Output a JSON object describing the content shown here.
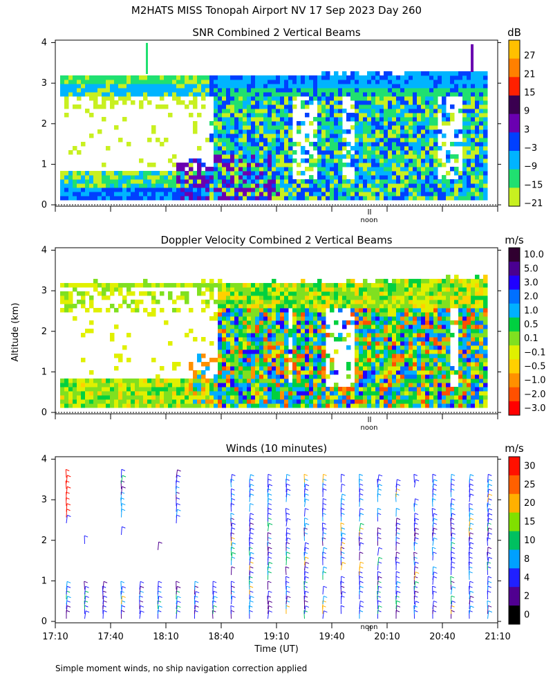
{
  "title": "M2HATS MISS Tonopah Airport NV  17 Sep 2023 Day 260",
  "ylabel": "Altitude (km)",
  "xlabel": "Time (UT)",
  "footnote": "Simple moment winds, no ship navigation correction applied",
  "noon_label": "noon",
  "chart_data": [
    {
      "type": "heatmap",
      "title": "SNR Combined 2 Vertical Beams",
      "unit": "dB",
      "ylim": [
        0,
        4
      ],
      "yticks": [
        "0",
        "1",
        "2",
        "3",
        "4"
      ],
      "colorbar": {
        "labels": [
          "27",
          "21",
          "15",
          "9",
          "3",
          "−3",
          "−9",
          "−15",
          "−21"
        ],
        "colors": [
          "#ffc000",
          "#ff8000",
          "#ff2000",
          "#3a0050",
          "#6a00b0",
          "#0040ff",
          "#00b4ff",
          "#20e070",
          "#c8f020"
        ]
      }
    },
    {
      "type": "heatmap",
      "title": "Doppler Velocity Combined 2 Vertical Beams",
      "unit": "m/s",
      "ylim": [
        0,
        4
      ],
      "yticks": [
        "0",
        "1",
        "2",
        "3",
        "4"
      ],
      "colorbar": {
        "labels": [
          "10.0",
          "5.0",
          "3.0",
          "2.0",
          "1.0",
          "0.5",
          "0.1",
          "−0.1",
          "−0.5",
          "−1.0",
          "−2.0",
          "−3.0"
        ],
        "colors": [
          "#300030",
          "#4a0090",
          "#2000ff",
          "#0070ff",
          "#00b0ff",
          "#00d040",
          "#80e020",
          "#e0f000",
          "#ffd000",
          "#ff9000",
          "#ff5000",
          "#ff0000"
        ]
      }
    },
    {
      "type": "scatter",
      "title": "Winds (10 minutes)",
      "unit": "m/s",
      "ylim": [
        0,
        4
      ],
      "yticks": [
        "0",
        "1",
        "2",
        "3",
        "4"
      ],
      "xticks": [
        "17:10",
        "17:40",
        "18:10",
        "18:40",
        "19:10",
        "19:40",
        "20:10",
        "20:40",
        "21:10"
      ],
      "colorbar": {
        "labels": [
          "30",
          "25",
          "20",
          "15",
          "10",
          "8",
          "4",
          "2",
          "0"
        ],
        "colors": [
          "#ff1000",
          "#ff6000",
          "#ffb000",
          "#80e000",
          "#00c060",
          "#00a0ff",
          "#2020ff",
          "#500090",
          "#000000"
        ]
      }
    }
  ]
}
